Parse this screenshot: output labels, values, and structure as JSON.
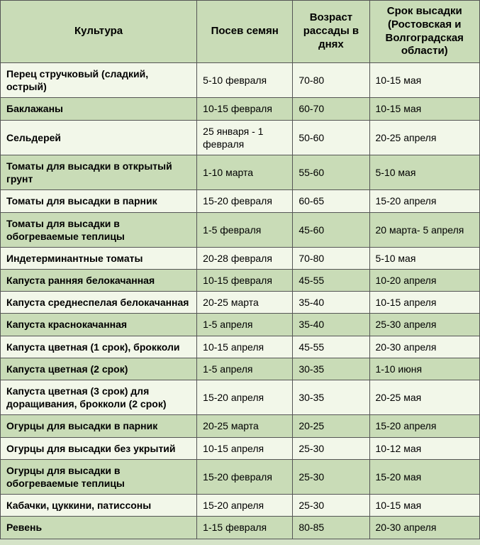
{
  "table": {
    "background_color": "#d5e3c8",
    "header_bg": "#c9dcb7",
    "row_odd_bg": "#f2f7e9",
    "row_even_bg": "#c9dcb7",
    "border_color": "#555555",
    "font_family": "Arial",
    "header_fontsize": 15,
    "body_fontsize": 14,
    "columns": [
      {
        "key": "crop",
        "label": "Культура",
        "width_pct": 41,
        "align": "left",
        "bold": true
      },
      {
        "key": "sow",
        "label": "Посев семян",
        "width_pct": 20,
        "align": "left"
      },
      {
        "key": "age",
        "label": "Возраст рассады в днях",
        "width_pct": 16,
        "align": "left"
      },
      {
        "key": "plant",
        "label": "Срок высадки (Ростовская и Волгоградская области)",
        "width_pct": 23,
        "align": "left"
      }
    ],
    "rows": [
      {
        "crop": "Перец стручковый (сладкий, острый)",
        "sow": "5-10 февраля",
        "age": "70-80",
        "plant": "10-15 мая"
      },
      {
        "crop": "Баклажаны",
        "sow": "10-15 февраля",
        "age": "60-70",
        "plant": "10-15 мая"
      },
      {
        "crop": "Сельдерей",
        "sow": "25 января - 1 февраля",
        "age": "50-60",
        "plant": "20-25 апреля"
      },
      {
        "crop": "Томаты для высадки в открытый грунт",
        "sow": "1-10 марта",
        "age": "55-60",
        "plant": "5-10 мая"
      },
      {
        "crop": "Томаты для высадки в парник",
        "sow": "15-20 февраля",
        "age": "60-65",
        "plant": "15-20 апреля"
      },
      {
        "crop": "Томаты для высадки в обогреваемые теплицы",
        "sow": "1-5 февраля",
        "age": "45-60",
        "plant": "20 марта- 5 апреля"
      },
      {
        "crop": "Индетерминантные томаты",
        "sow": "20-28 февраля",
        "age": "70-80",
        "plant": "5-10 мая"
      },
      {
        "crop": "Капуста ранняя белокачанная",
        "sow": "10-15 февраля",
        "age": "45-55",
        "plant": "10-20 апреля"
      },
      {
        "crop": "Капуста среднеспелая белокачанная",
        "sow": "20-25 марта",
        "age": "35-40",
        "plant": "10-15 апреля"
      },
      {
        "crop": "Капуста краснокачанная",
        "sow": "1-5 апреля",
        "age": "35-40",
        "plant": "25-30 апреля"
      },
      {
        "crop": "Капуста цветная (1 срок), брокколи",
        "sow": "10-15 апреля",
        "age": "45-55",
        "plant": "20-30 апреля"
      },
      {
        "crop": "Капуста цветная (2 срок)",
        "sow": "1-5 апреля",
        "age": "30-35",
        "plant": "1-10 июня"
      },
      {
        "crop": "Капуста цветная (3 срок) для доращивания, брокколи (2 срок)",
        "sow": "15-20 апреля",
        "age": "30-35",
        "plant": "20-25 мая"
      },
      {
        "crop": "Огурцы для высадки в парник",
        "sow": "20-25 марта",
        "age": "20-25",
        "plant": "15-20 апреля"
      },
      {
        "crop": "Огурцы для высадки без укрытий",
        "sow": "10-15 апреля",
        "age": "25-30",
        "plant": "10-12 мая"
      },
      {
        "crop": "Огурцы для высадки в обогреваемые теплицы",
        "sow": "15-20 февраля",
        "age": "25-30",
        "plant": "15-20 мая"
      },
      {
        "crop": "Кабачки, цуккини, патиссоны",
        "sow": "15-20 апреля",
        "age": "25-30",
        "plant": "10-15 мая"
      },
      {
        "crop": "Ревень",
        "sow": "1-15 февраля",
        "age": "80-85",
        "plant": "20-30 апреля"
      }
    ]
  }
}
